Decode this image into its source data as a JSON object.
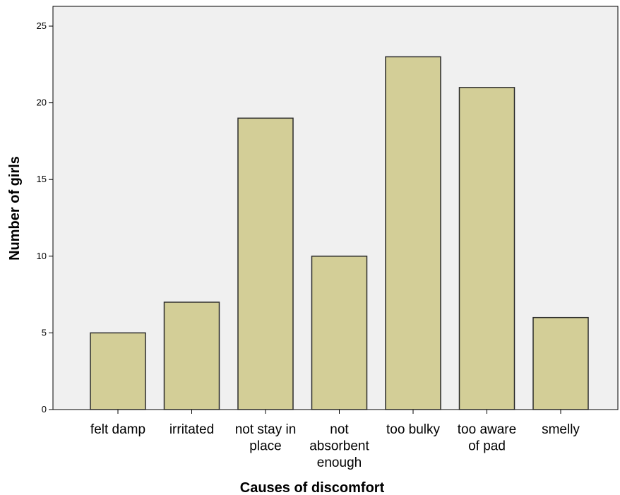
{
  "chart_data": {
    "type": "bar",
    "title": "",
    "xlabel": "Causes of discomfort",
    "ylabel": "Number of girls",
    "categories": [
      [
        "felt damp"
      ],
      [
        "irritated"
      ],
      [
        "not stay in",
        "place"
      ],
      [
        "not",
        "absorbent",
        "enough"
      ],
      [
        "too bulky"
      ],
      [
        "too aware",
        "of pad"
      ],
      [
        "smelly"
      ]
    ],
    "values": [
      5,
      7,
      19,
      10,
      23,
      21,
      6
    ],
    "ylim": [
      0,
      25
    ],
    "yticks": [
      0,
      5,
      10,
      15,
      20,
      25
    ],
    "grid": false,
    "legend": "none",
    "colors": {
      "plot_background": "#f0f0f0",
      "bar_fill": "#d3ce97",
      "bar_stroke": "#2b2b2b",
      "axis": "#000000"
    }
  }
}
